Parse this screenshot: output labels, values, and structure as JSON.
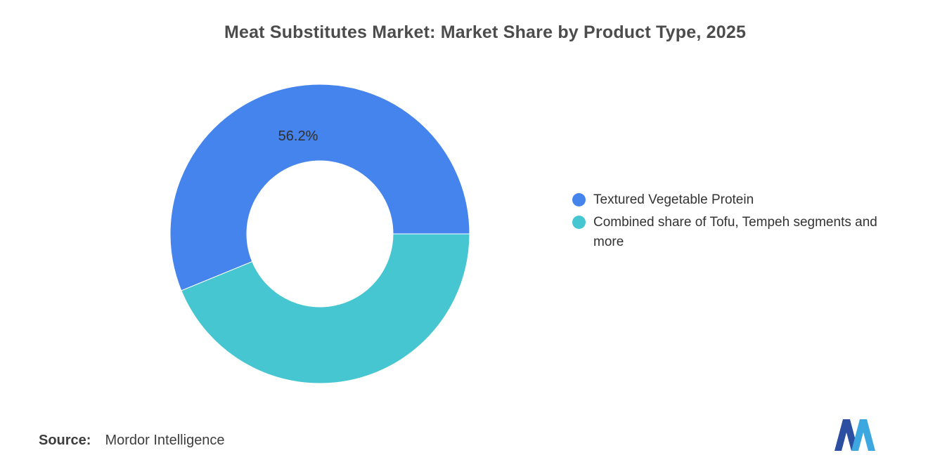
{
  "title": "Meat Substitutes Market: Market Share by Product Type, 2025",
  "chart_data": {
    "type": "pie",
    "subtype": "donut",
    "title": "Meat Substitutes Market: Market Share by Product Type, 2025",
    "labels": [
      "Textured Vegetable Protein",
      "Combined share of Tofu, Tempeh segments and more"
    ],
    "values": [
      56.2,
      43.8
    ],
    "colors": [
      "#4584ec",
      "#45c6d1"
    ],
    "data_labels": [
      "56.2%",
      ""
    ],
    "start_angle_deg": 0,
    "direction": "counterclockwise",
    "inner_radius_ratio": 0.49,
    "legend_position": "right",
    "background": "#ffffff"
  },
  "legend": {
    "items": [
      {
        "label": "Textured Vegetable Protein",
        "color": "#4584ec"
      },
      {
        "label": "Combined share of Tofu, Tempeh segments and more",
        "color": "#45c6d1"
      }
    ]
  },
  "source": {
    "label": "Source:",
    "value": "Mordor Intelligence"
  },
  "logo": {
    "name": "Mordor Intelligence",
    "color_dark": "#2d4fa1",
    "color_light": "#3da8e0"
  }
}
